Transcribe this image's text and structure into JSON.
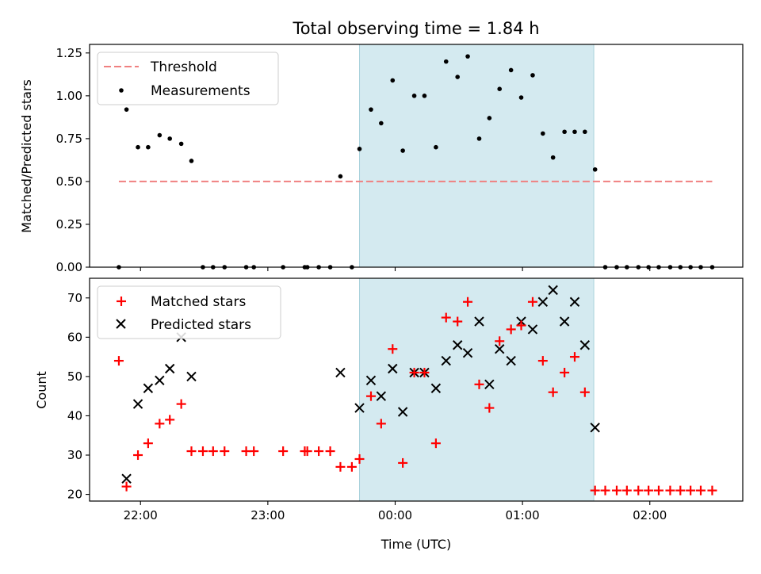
{
  "chart_data": {
    "type": "scatter",
    "title": "Total observing time = 1.84 h",
    "xlabel": "Time (UTC)",
    "xlim_hours": [
      21.6,
      26.73
    ],
    "x_tick_labels": [
      {
        "hour": 22,
        "label": "22:00"
      },
      {
        "hour": 23,
        "label": "23:00"
      },
      {
        "hour": 24,
        "label": "00:00"
      },
      {
        "hour": 25,
        "label": "01:00"
      },
      {
        "hour": 26,
        "label": "02:00"
      }
    ],
    "observing_window_hours": [
      23.72,
      25.56
    ],
    "colors": {
      "shade": "#d4eaf0",
      "shade_edge": "#a8d2dc",
      "threshold": "#f08080",
      "matched": "#ff0000",
      "predicted": "#000000"
    },
    "top_panel": {
      "ylabel": "Matched/Predicted stars",
      "ylim": [
        0,
        1.3
      ],
      "y_ticks": [
        "0.00",
        "0.25",
        "0.50",
        "0.75",
        "1.00",
        "1.25"
      ],
      "threshold": {
        "name": "Threshold",
        "value": 0.5,
        "x_range": [
          21.83,
          26.49
        ]
      },
      "measurements": {
        "name": "Measurements",
        "points": [
          [
            21.83,
            0.0
          ],
          [
            21.89,
            0.92
          ],
          [
            21.98,
            0.7
          ],
          [
            22.06,
            0.7
          ],
          [
            22.15,
            0.77
          ],
          [
            22.23,
            0.75
          ],
          [
            22.32,
            0.72
          ],
          [
            22.4,
            0.62
          ],
          [
            22.49,
            0.0
          ],
          [
            22.57,
            0.0
          ],
          [
            22.66,
            0.0
          ],
          [
            22.83,
            0.0
          ],
          [
            22.89,
            0.0
          ],
          [
            23.12,
            0.0
          ],
          [
            23.29,
            0.0
          ],
          [
            23.31,
            0.0
          ],
          [
            23.4,
            0.0
          ],
          [
            23.49,
            0.0
          ],
          [
            23.57,
            0.53
          ],
          [
            23.66,
            0.0
          ],
          [
            23.72,
            0.69
          ],
          [
            23.81,
            0.92
          ],
          [
            23.89,
            0.84
          ],
          [
            23.98,
            1.09
          ],
          [
            24.06,
            0.68
          ],
          [
            24.15,
            1.0
          ],
          [
            24.23,
            1.0
          ],
          [
            24.32,
            0.7
          ],
          [
            24.4,
            1.2
          ],
          [
            24.49,
            1.11
          ],
          [
            24.57,
            1.23
          ],
          [
            24.66,
            0.75
          ],
          [
            24.74,
            0.87
          ],
          [
            24.82,
            1.04
          ],
          [
            24.91,
            1.15
          ],
          [
            24.99,
            0.99
          ],
          [
            25.08,
            1.12
          ],
          [
            25.16,
            0.78
          ],
          [
            25.24,
            0.64
          ],
          [
            25.33,
            0.79
          ],
          [
            25.41,
            0.79
          ],
          [
            25.49,
            0.79
          ],
          [
            25.57,
            0.57
          ],
          [
            25.65,
            0.0
          ],
          [
            25.74,
            0.0
          ],
          [
            25.82,
            0.0
          ],
          [
            25.91,
            0.0
          ],
          [
            25.99,
            0.0
          ],
          [
            26.07,
            0.0
          ],
          [
            26.16,
            0.0
          ],
          [
            26.24,
            0.0
          ],
          [
            26.32,
            0.0
          ],
          [
            26.4,
            0.0
          ],
          [
            26.49,
            0.0
          ]
        ]
      }
    },
    "bottom_panel": {
      "ylabel": "Count",
      "ylim": [
        18.3,
        75.0
      ],
      "y_ticks": [
        "20",
        "30",
        "40",
        "50",
        "60",
        "70"
      ],
      "series": [
        {
          "name": "Matched stars",
          "marker": "plus",
          "points": [
            [
              21.83,
              54
            ],
            [
              21.89,
              22
            ],
            [
              21.98,
              30
            ],
            [
              22.06,
              33
            ],
            [
              22.15,
              38
            ],
            [
              22.23,
              39
            ],
            [
              22.32,
              43
            ],
            [
              22.4,
              31
            ],
            [
              22.49,
              31
            ],
            [
              22.57,
              31
            ],
            [
              22.66,
              31
            ],
            [
              22.83,
              31
            ],
            [
              22.89,
              31
            ],
            [
              23.12,
              31
            ],
            [
              23.29,
              31
            ],
            [
              23.31,
              31
            ],
            [
              23.4,
              31
            ],
            [
              23.49,
              31
            ],
            [
              23.57,
              27
            ],
            [
              23.66,
              27
            ],
            [
              23.72,
              29
            ],
            [
              23.81,
              45
            ],
            [
              23.89,
              38
            ],
            [
              23.98,
              57
            ],
            [
              24.06,
              28
            ],
            [
              24.15,
              51
            ],
            [
              24.23,
              51
            ],
            [
              24.32,
              33
            ],
            [
              24.4,
              65
            ],
            [
              24.49,
              64
            ],
            [
              24.57,
              69
            ],
            [
              24.66,
              48
            ],
            [
              24.74,
              42
            ],
            [
              24.82,
              59
            ],
            [
              24.91,
              62
            ],
            [
              24.99,
              63
            ],
            [
              25.08,
              69
            ],
            [
              25.16,
              54
            ],
            [
              25.24,
              46
            ],
            [
              25.33,
              51
            ],
            [
              25.41,
              55
            ],
            [
              25.49,
              46
            ],
            [
              25.57,
              21
            ],
            [
              25.65,
              21
            ],
            [
              25.74,
              21
            ],
            [
              25.82,
              21
            ],
            [
              25.91,
              21
            ],
            [
              25.99,
              21
            ],
            [
              26.07,
              21
            ],
            [
              26.16,
              21
            ],
            [
              26.24,
              21
            ],
            [
              26.32,
              21
            ],
            [
              26.4,
              21
            ],
            [
              26.49,
              21
            ]
          ]
        },
        {
          "name": "Predicted stars",
          "marker": "x",
          "points": [
            [
              21.89,
              24
            ],
            [
              21.98,
              43
            ],
            [
              22.06,
              47
            ],
            [
              22.15,
              49
            ],
            [
              22.23,
              52
            ],
            [
              22.32,
              60
            ],
            [
              22.4,
              50
            ],
            [
              23.57,
              51
            ],
            [
              23.72,
              42
            ],
            [
              23.81,
              49
            ],
            [
              23.89,
              45
            ],
            [
              23.98,
              52
            ],
            [
              24.06,
              41
            ],
            [
              24.15,
              51
            ],
            [
              24.23,
              51
            ],
            [
              24.32,
              47
            ],
            [
              24.4,
              54
            ],
            [
              24.49,
              58
            ],
            [
              24.57,
              56
            ],
            [
              24.66,
              64
            ],
            [
              24.74,
              48
            ],
            [
              24.82,
              57
            ],
            [
              24.91,
              54
            ],
            [
              24.99,
              64
            ],
            [
              25.08,
              62
            ],
            [
              25.16,
              69
            ],
            [
              25.24,
              72
            ],
            [
              25.33,
              64
            ],
            [
              25.41,
              69
            ],
            [
              25.49,
              58
            ],
            [
              25.57,
              37
            ]
          ]
        }
      ]
    },
    "legends": {
      "top": {
        "position": "upper-left",
        "items": [
          "Threshold",
          "Measurements"
        ]
      },
      "bottom": {
        "position": "upper-left",
        "items": [
          "Matched stars",
          "Predicted stars"
        ]
      }
    }
  }
}
